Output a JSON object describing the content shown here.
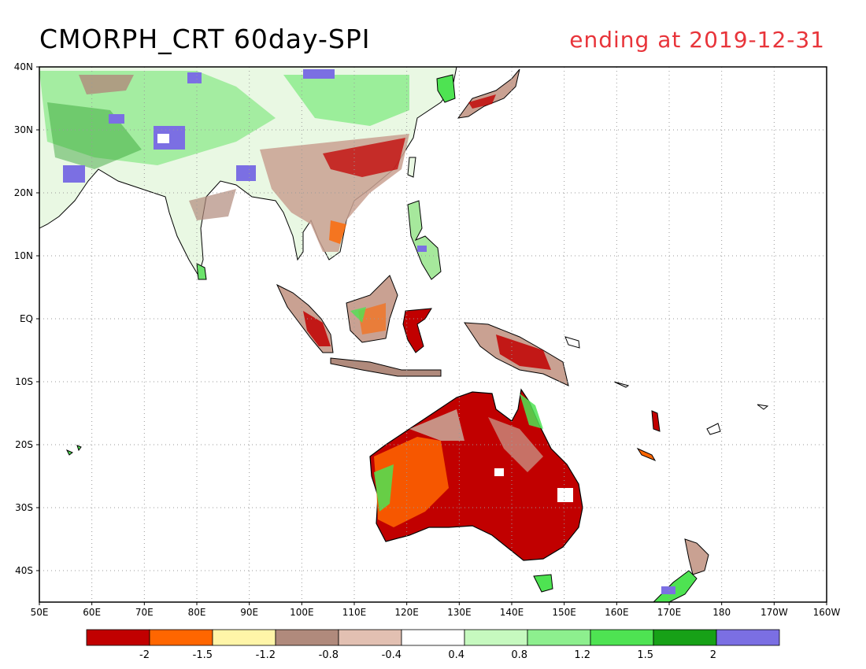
{
  "title": "CMORPH_CRT 60day-SPI",
  "subtitle": "ending at 2019-12-31",
  "map": {
    "lon_labels": [
      "50E",
      "60E",
      "70E",
      "80E",
      "90E",
      "100E",
      "110E",
      "120E",
      "130E",
      "140E",
      "150E",
      "160E",
      "170E",
      "180",
      "170W",
      "160W"
    ],
    "lat_labels": [
      "40N",
      "30N",
      "20N",
      "10N",
      "EQ",
      "10S",
      "20S",
      "30S",
      "40S"
    ],
    "lon_range": [
      50,
      200
    ],
    "lat_range": [
      -45,
      40
    ],
    "grid": "dotted"
  },
  "colorbar": {
    "colors": [
      "#c10000",
      "#ff6600",
      "#fff5a8",
      "#b08a7c",
      "#e2c0b2",
      "#ffffff",
      "#c6f9bf",
      "#8def8e",
      "#4ee352",
      "#17a117",
      "#7b6fe3"
    ],
    "labels": [
      "-2",
      "-1.5",
      "-1.2",
      "-0.8",
      "-0.4",
      "0.4",
      "0.8",
      "1.2",
      "1.5",
      "2"
    ]
  }
}
